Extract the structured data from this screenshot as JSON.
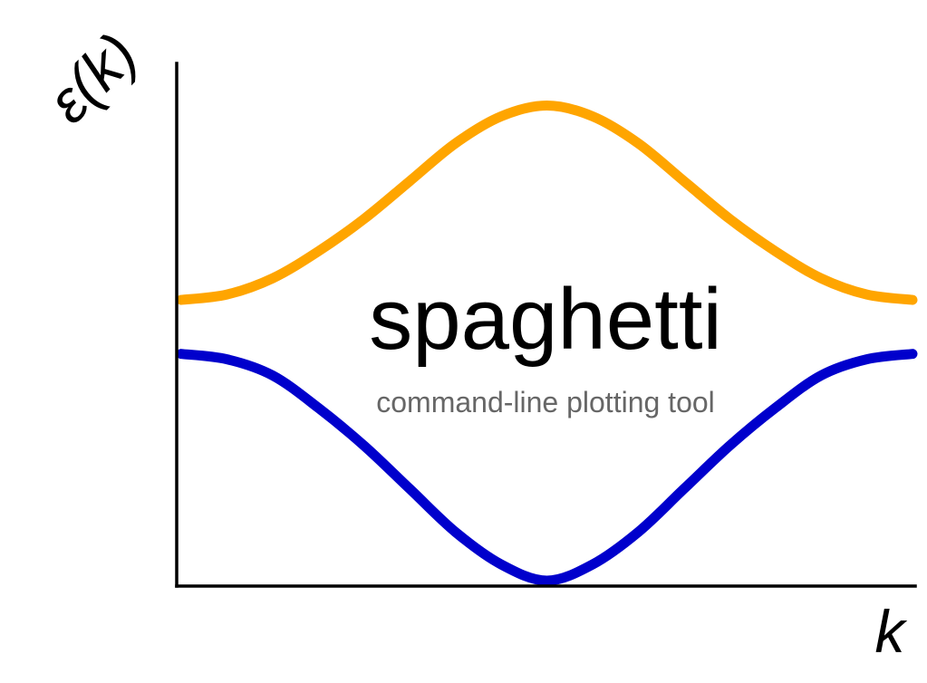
{
  "chart_data": {
    "type": "line",
    "title": "spaghetti",
    "subtitle": "command-line plotting tool",
    "xlabel": "k",
    "ylabel": "ε(k)",
    "xlim": [
      0,
      1
    ],
    "ylim": [
      0,
      1
    ],
    "grid": false,
    "legend": "none",
    "tick_labels": false,
    "series": [
      {
        "color": "#FFA500",
        "x": [
          0,
          0.0625,
          0.125,
          0.1875,
          0.25,
          0.3125,
          0.375,
          0.4375,
          0.5,
          0.5625,
          0.625,
          0.6875,
          0.75,
          0.8125,
          0.875,
          0.9375,
          1
        ],
        "y": [
          0.52,
          0.53,
          0.56,
          0.61,
          0.67,
          0.74,
          0.81,
          0.86,
          0.88,
          0.86,
          0.81,
          0.74,
          0.67,
          0.61,
          0.56,
          0.53,
          0.52
        ]
      },
      {
        "color": "#0000CC",
        "x": [
          0,
          0.0625,
          0.125,
          0.1875,
          0.25,
          0.3125,
          0.375,
          0.4375,
          0.5,
          0.5625,
          0.625,
          0.6875,
          0.75,
          0.8125,
          0.875,
          0.9375,
          1
        ],
        "y": [
          0.42,
          0.41,
          0.38,
          0.32,
          0.25,
          0.17,
          0.09,
          0.03,
          0.0,
          0.03,
          0.09,
          0.17,
          0.25,
          0.32,
          0.38,
          0.41,
          0.42
        ]
      }
    ]
  }
}
